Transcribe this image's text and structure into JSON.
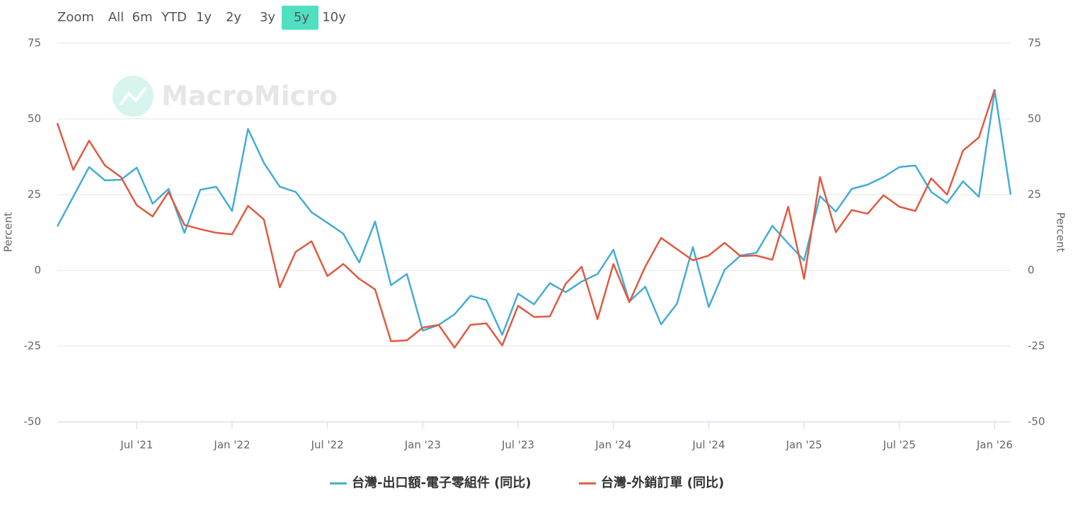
{
  "range_selector": {
    "label": "Zoom",
    "buttons": [
      "All",
      "6m",
      "YTD",
      "1y",
      "2y",
      "3y",
      "5y",
      "10y"
    ],
    "active": "5y"
  },
  "watermark": "MacroMicro",
  "chart_data": {
    "type": "line",
    "y_label": "Percent",
    "y2_label": "Percent",
    "x": [
      "2021-02",
      "2021-03",
      "2021-04",
      "2021-05",
      "2021-06",
      "2021-07",
      "2021-08",
      "2021-09",
      "2021-10",
      "2021-11",
      "2021-12",
      "2022-01",
      "2022-02",
      "2022-03",
      "2022-04",
      "2022-05",
      "2022-06",
      "2022-07",
      "2022-08",
      "2022-09",
      "2022-10",
      "2022-11",
      "2022-12",
      "2023-01",
      "2023-02",
      "2023-03",
      "2023-04",
      "2023-05",
      "2023-06",
      "2023-07",
      "2023-08",
      "2023-09",
      "2023-10",
      "2023-11",
      "2023-12",
      "2024-01",
      "2024-02",
      "2024-03",
      "2024-04",
      "2024-05",
      "2024-06",
      "2024-07",
      "2024-08",
      "2024-09",
      "2024-10",
      "2024-11",
      "2024-12",
      "2025-01",
      "2025-02",
      "2025-03",
      "2025-04",
      "2025-05",
      "2025-06",
      "2025-07",
      "2025-08",
      "2025-09",
      "2025-10",
      "2025-11",
      "2025-12",
      "2026-01",
      "2026-02"
    ],
    "xticks": [
      {
        "value": "2021-07",
        "label": "Jul '21"
      },
      {
        "value": "2022-01",
        "label": "Jan '22"
      },
      {
        "value": "2022-07",
        "label": "Jul '22"
      },
      {
        "value": "2023-01",
        "label": "Jan '23"
      },
      {
        "value": "2023-07",
        "label": "Jul '23"
      },
      {
        "value": "2024-01",
        "label": "Jan '24"
      },
      {
        "value": "2024-07",
        "label": "Jul '24"
      },
      {
        "value": "2025-01",
        "label": "Jan '25"
      },
      {
        "value": "2025-07",
        "label": "Jul '25"
      },
      {
        "value": "2026-01",
        "label": "Jan '26"
      }
    ],
    "ylim": [
      -50,
      75
    ],
    "yticks": [
      -50,
      -25,
      0,
      25,
      50,
      75
    ],
    "y2lim": [
      -50,
      75
    ],
    "y2ticks": [
      -50,
      -25,
      0,
      25,
      50,
      75
    ],
    "grid": true,
    "series": [
      {
        "name": "台灣-出口額-電子零組件 (同比)",
        "color": "#45acd5",
        "values": [
          14.5,
          24.3,
          34.1,
          29.7,
          29.9,
          33.9,
          22.0,
          26.9,
          12.4,
          26.6,
          27.6,
          19.6,
          46.7,
          35.5,
          27.6,
          25.9,
          19.2,
          15.7,
          12.1,
          2.6,
          16.1,
          -4.9,
          -1.2,
          -19.9,
          -18.0,
          -14.5,
          -8.4,
          -9.8,
          -21.3,
          -7.7,
          -11.2,
          -4.2,
          -7.2,
          -3.7,
          -1.2,
          6.8,
          -10.3,
          -5.4,
          -17.8,
          -11.0,
          7.7,
          -12.1,
          0.2,
          4.9,
          5.8,
          14.7,
          8.9,
          3.3,
          24.5,
          19.4,
          26.9,
          28.3,
          30.8,
          34.1,
          34.6,
          25.9,
          22.2,
          29.4,
          24.3,
          59.3,
          25.0
        ]
      },
      {
        "name": "台灣-外銷訂單 (同比)",
        "color": "#e05a40",
        "axis": "y2",
        "values": [
          48.6,
          33.2,
          42.8,
          34.6,
          30.8,
          21.5,
          17.8,
          25.9,
          15.0,
          13.6,
          12.4,
          11.9,
          21.3,
          16.8,
          -5.6,
          6.1,
          9.6,
          -1.9,
          2.1,
          -2.8,
          -6.3,
          -23.4,
          -23.1,
          -18.9,
          -18.0,
          -25.5,
          -18.0,
          -17.5,
          -24.8,
          -11.7,
          -15.4,
          -15.2,
          -4.4,
          1.2,
          -16.1,
          2.1,
          -10.5,
          1.2,
          10.7,
          7.0,
          3.3,
          4.9,
          9.1,
          4.7,
          4.9,
          3.5,
          21.0,
          -2.8,
          30.8,
          12.6,
          19.9,
          18.7,
          24.8,
          21.0,
          19.6,
          30.4,
          25.0,
          39.5,
          43.9,
          59.8,
          null
        ]
      }
    ]
  }
}
